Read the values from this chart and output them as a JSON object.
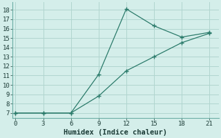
{
  "line1_x": [
    0,
    3,
    6,
    9,
    12,
    15,
    18,
    21
  ],
  "line1_y": [
    7,
    7,
    7,
    8.8,
    11.5,
    13.0,
    14.5,
    15.5
  ],
  "line2_x": [
    0,
    3,
    6,
    9,
    12,
    15,
    18,
    21
  ],
  "line2_y": [
    7,
    7,
    7,
    11.1,
    18.1,
    16.3,
    15.1,
    15.6
  ],
  "line_color": "#2a7a6a",
  "bg_color": "#d4eeea",
  "grid_color": "#b0d5cf",
  "spine_color": "#6aada4",
  "xlabel": "Humidex (Indice chaleur)",
  "xlim": [
    -0.3,
    22.0
  ],
  "ylim": [
    6.5,
    18.8
  ],
  "xticks": [
    0,
    3,
    6,
    9,
    12,
    15,
    18,
    21
  ],
  "yticks": [
    7,
    8,
    9,
    10,
    11,
    12,
    13,
    14,
    15,
    16,
    17,
    18
  ],
  "xlabel_fontsize": 7.5,
  "tick_fontsize": 6.5
}
